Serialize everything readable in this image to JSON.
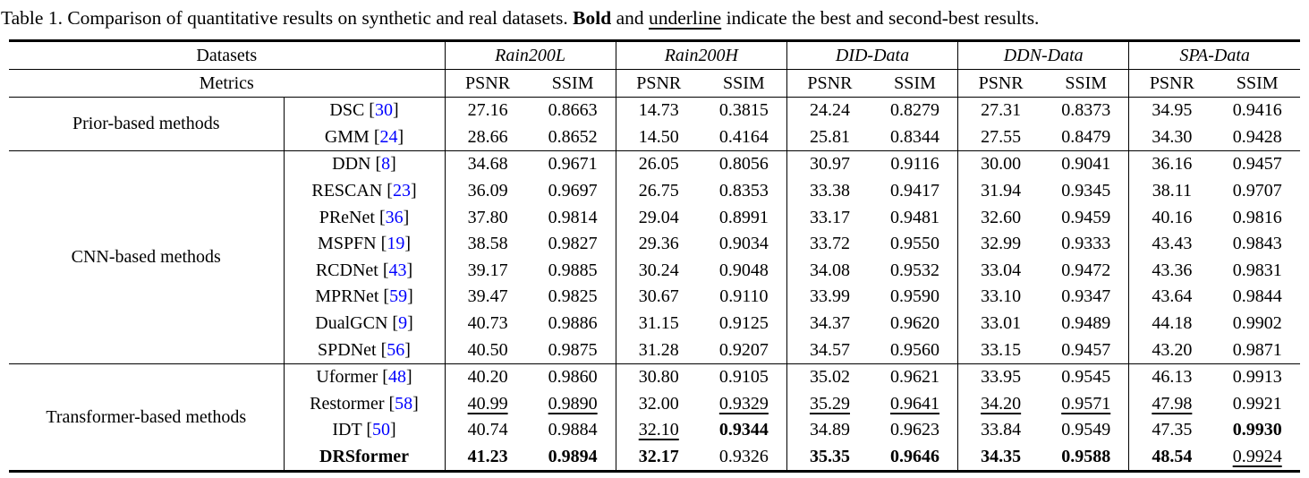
{
  "colors": {
    "citation": "#0000ff",
    "rule": "#000000",
    "background": "#ffffff"
  },
  "caption": {
    "segments": [
      {
        "text": "Table 1. Comparison of quantitative results on synthetic and real datasets. ",
        "style": "plain"
      },
      {
        "text": "Bold",
        "style": "bold"
      },
      {
        "text": " and ",
        "style": "plain"
      },
      {
        "text": "underline",
        "style": "underline"
      },
      {
        "text": " indicate the best and second-best results.",
        "style": "plain"
      }
    ]
  },
  "table": {
    "corner_labels": {
      "datasets": "Datasets",
      "metrics": "Metrics"
    },
    "datasets": [
      "Rain200L",
      "Rain200H",
      "DID-Data",
      "DDN-Data",
      "SPA-Data"
    ],
    "metrics": [
      "PSNR",
      "SSIM"
    ],
    "citation_wrap": {
      "open": " [",
      "close": "]"
    },
    "groups": [
      {
        "name": "Prior-based methods",
        "rows": [
          {
            "method": "DSC",
            "cite": "30",
            "bold": false,
            "values": [
              {
                "v": "27.16",
                "s": ""
              },
              {
                "v": "0.8663",
                "s": ""
              },
              {
                "v": "14.73",
                "s": ""
              },
              {
                "v": "0.3815",
                "s": ""
              },
              {
                "v": "24.24",
                "s": ""
              },
              {
                "v": "0.8279",
                "s": ""
              },
              {
                "v": "27.31",
                "s": ""
              },
              {
                "v": "0.8373",
                "s": ""
              },
              {
                "v": "34.95",
                "s": ""
              },
              {
                "v": "0.9416",
                "s": ""
              }
            ]
          },
          {
            "method": "GMM",
            "cite": "24",
            "bold": false,
            "values": [
              {
                "v": "28.66",
                "s": ""
              },
              {
                "v": "0.8652",
                "s": ""
              },
              {
                "v": "14.50",
                "s": ""
              },
              {
                "v": "0.4164",
                "s": ""
              },
              {
                "v": "25.81",
                "s": ""
              },
              {
                "v": "0.8344",
                "s": ""
              },
              {
                "v": "27.55",
                "s": ""
              },
              {
                "v": "0.8479",
                "s": ""
              },
              {
                "v": "34.30",
                "s": ""
              },
              {
                "v": "0.9428",
                "s": ""
              }
            ]
          }
        ]
      },
      {
        "name": "CNN-based methods",
        "rows": [
          {
            "method": "DDN",
            "cite": "8",
            "bold": false,
            "values": [
              {
                "v": "34.68",
                "s": ""
              },
              {
                "v": "0.9671",
                "s": ""
              },
              {
                "v": "26.05",
                "s": ""
              },
              {
                "v": "0.8056",
                "s": ""
              },
              {
                "v": "30.97",
                "s": ""
              },
              {
                "v": "0.9116",
                "s": ""
              },
              {
                "v": "30.00",
                "s": ""
              },
              {
                "v": "0.9041",
                "s": ""
              },
              {
                "v": "36.16",
                "s": ""
              },
              {
                "v": "0.9457",
                "s": ""
              }
            ]
          },
          {
            "method": "RESCAN",
            "cite": "23",
            "bold": false,
            "values": [
              {
                "v": "36.09",
                "s": ""
              },
              {
                "v": "0.9697",
                "s": ""
              },
              {
                "v": "26.75",
                "s": ""
              },
              {
                "v": "0.8353",
                "s": ""
              },
              {
                "v": "33.38",
                "s": ""
              },
              {
                "v": "0.9417",
                "s": ""
              },
              {
                "v": "31.94",
                "s": ""
              },
              {
                "v": "0.9345",
                "s": ""
              },
              {
                "v": "38.11",
                "s": ""
              },
              {
                "v": "0.9707",
                "s": ""
              }
            ]
          },
          {
            "method": "PReNet",
            "cite": "36",
            "bold": false,
            "values": [
              {
                "v": "37.80",
                "s": ""
              },
              {
                "v": "0.9814",
                "s": ""
              },
              {
                "v": "29.04",
                "s": ""
              },
              {
                "v": "0.8991",
                "s": ""
              },
              {
                "v": "33.17",
                "s": ""
              },
              {
                "v": "0.9481",
                "s": ""
              },
              {
                "v": "32.60",
                "s": ""
              },
              {
                "v": "0.9459",
                "s": ""
              },
              {
                "v": "40.16",
                "s": ""
              },
              {
                "v": "0.9816",
                "s": ""
              }
            ]
          },
          {
            "method": "MSPFN",
            "cite": "19",
            "bold": false,
            "values": [
              {
                "v": "38.58",
                "s": ""
              },
              {
                "v": "0.9827",
                "s": ""
              },
              {
                "v": "29.36",
                "s": ""
              },
              {
                "v": "0.9034",
                "s": ""
              },
              {
                "v": "33.72",
                "s": ""
              },
              {
                "v": "0.9550",
                "s": ""
              },
              {
                "v": "32.99",
                "s": ""
              },
              {
                "v": "0.9333",
                "s": ""
              },
              {
                "v": "43.43",
                "s": ""
              },
              {
                "v": "0.9843",
                "s": ""
              }
            ]
          },
          {
            "method": "RCDNet",
            "cite": "43",
            "bold": false,
            "values": [
              {
                "v": "39.17",
                "s": ""
              },
              {
                "v": "0.9885",
                "s": ""
              },
              {
                "v": "30.24",
                "s": ""
              },
              {
                "v": "0.9048",
                "s": ""
              },
              {
                "v": "34.08",
                "s": ""
              },
              {
                "v": "0.9532",
                "s": ""
              },
              {
                "v": "33.04",
                "s": ""
              },
              {
                "v": "0.9472",
                "s": ""
              },
              {
                "v": "43.36",
                "s": ""
              },
              {
                "v": "0.9831",
                "s": ""
              }
            ]
          },
          {
            "method": "MPRNet",
            "cite": "59",
            "bold": false,
            "values": [
              {
                "v": "39.47",
                "s": ""
              },
              {
                "v": "0.9825",
                "s": ""
              },
              {
                "v": "30.67",
                "s": ""
              },
              {
                "v": "0.9110",
                "s": ""
              },
              {
                "v": "33.99",
                "s": ""
              },
              {
                "v": "0.9590",
                "s": ""
              },
              {
                "v": "33.10",
                "s": ""
              },
              {
                "v": "0.9347",
                "s": ""
              },
              {
                "v": "43.64",
                "s": ""
              },
              {
                "v": "0.9844",
                "s": ""
              }
            ]
          },
          {
            "method": "DualGCN",
            "cite": "9",
            "bold": false,
            "values": [
              {
                "v": "40.73",
                "s": ""
              },
              {
                "v": "0.9886",
                "s": ""
              },
              {
                "v": "31.15",
                "s": ""
              },
              {
                "v": "0.9125",
                "s": ""
              },
              {
                "v": "34.37",
                "s": ""
              },
              {
                "v": "0.9620",
                "s": ""
              },
              {
                "v": "33.01",
                "s": ""
              },
              {
                "v": "0.9489",
                "s": ""
              },
              {
                "v": "44.18",
                "s": ""
              },
              {
                "v": "0.9902",
                "s": ""
              }
            ]
          },
          {
            "method": "SPDNet",
            "cite": "56",
            "bold": false,
            "values": [
              {
                "v": "40.50",
                "s": ""
              },
              {
                "v": "0.9875",
                "s": ""
              },
              {
                "v": "31.28",
                "s": ""
              },
              {
                "v": "0.9207",
                "s": ""
              },
              {
                "v": "34.57",
                "s": ""
              },
              {
                "v": "0.9560",
                "s": ""
              },
              {
                "v": "33.15",
                "s": ""
              },
              {
                "v": "0.9457",
                "s": ""
              },
              {
                "v": "43.20",
                "s": ""
              },
              {
                "v": "0.9871",
                "s": ""
              }
            ]
          }
        ]
      },
      {
        "name": "Transformer-based methods",
        "rows": [
          {
            "method": "Uformer",
            "cite": "48",
            "bold": false,
            "values": [
              {
                "v": "40.20",
                "s": ""
              },
              {
                "v": "0.9860",
                "s": ""
              },
              {
                "v": "30.80",
                "s": ""
              },
              {
                "v": "0.9105",
                "s": ""
              },
              {
                "v": "35.02",
                "s": ""
              },
              {
                "v": "0.9621",
                "s": ""
              },
              {
                "v": "33.95",
                "s": ""
              },
              {
                "v": "0.9545",
                "s": ""
              },
              {
                "v": "46.13",
                "s": ""
              },
              {
                "v": "0.9913",
                "s": ""
              }
            ]
          },
          {
            "method": "Restormer",
            "cite": "58",
            "bold": false,
            "values": [
              {
                "v": "40.99",
                "s": "u"
              },
              {
                "v": "0.9890",
                "s": "u"
              },
              {
                "v": "32.00",
                "s": ""
              },
              {
                "v": "0.9329",
                "s": "u"
              },
              {
                "v": "35.29",
                "s": "u"
              },
              {
                "v": "0.9641",
                "s": "u"
              },
              {
                "v": "34.20",
                "s": "u"
              },
              {
                "v": "0.9571",
                "s": "u"
              },
              {
                "v": "47.98",
                "s": "u"
              },
              {
                "v": "0.9921",
                "s": ""
              }
            ]
          },
          {
            "method": "IDT",
            "cite": "50",
            "bold": false,
            "values": [
              {
                "v": "40.74",
                "s": ""
              },
              {
                "v": "0.9884",
                "s": ""
              },
              {
                "v": "32.10",
                "s": "u"
              },
              {
                "v": "0.9344",
                "s": "b"
              },
              {
                "v": "34.89",
                "s": ""
              },
              {
                "v": "0.9623",
                "s": ""
              },
              {
                "v": "33.84",
                "s": ""
              },
              {
                "v": "0.9549",
                "s": ""
              },
              {
                "v": "47.35",
                "s": ""
              },
              {
                "v": "0.9930",
                "s": "b"
              }
            ]
          },
          {
            "method": "DRSformer",
            "cite": null,
            "bold": true,
            "values": [
              {
                "v": "41.23",
                "s": "b"
              },
              {
                "v": "0.9894",
                "s": "b"
              },
              {
                "v": "32.17",
                "s": "b"
              },
              {
                "v": "0.9326",
                "s": ""
              },
              {
                "v": "35.35",
                "s": "b"
              },
              {
                "v": "0.9646",
                "s": "b"
              },
              {
                "v": "34.35",
                "s": "b"
              },
              {
                "v": "0.9588",
                "s": "b"
              },
              {
                "v": "48.54",
                "s": "b"
              },
              {
                "v": "0.9924",
                "s": "u"
              }
            ]
          }
        ]
      }
    ]
  }
}
